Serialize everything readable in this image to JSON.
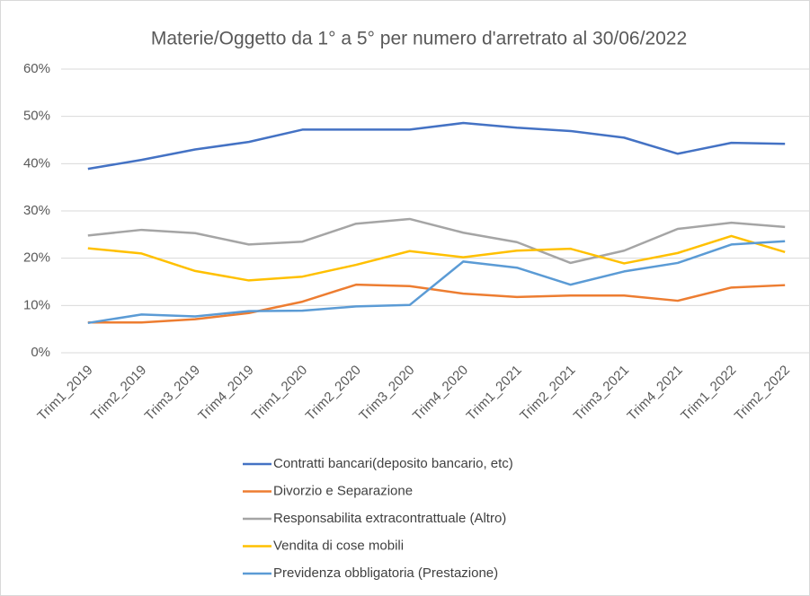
{
  "chart_data": {
    "type": "line",
    "title": "Materie/Oggetto da 1° a 5° per numero d'arretrato al 30/06/2022",
    "categories": [
      "Trim1_2019",
      "Trim2_2019",
      "Trim3_2019",
      "Trim4_2019",
      "Trim1_2020",
      "Trim2_2020",
      "Trim3_2020",
      "Trim4_2020",
      "Trim1_2021",
      "Trim2_2021",
      "Trim3_2021",
      "Trim4_2021",
      "Trim1_2022",
      "Trim2_2022"
    ],
    "series": [
      {
        "name": "Contratti bancari(deposito bancario, etc)",
        "color": "#4472c4",
        "values": [
          38.9,
          40.8,
          43.0,
          44.6,
          47.2,
          47.2,
          47.2,
          48.6,
          47.6,
          46.9,
          45.5,
          42.1,
          44.4,
          44.2
        ]
      },
      {
        "name": "Divorzio e Separazione",
        "color": "#ed7d31",
        "values": [
          6.4,
          6.4,
          7.1,
          8.4,
          10.8,
          14.4,
          14.1,
          12.5,
          11.8,
          12.1,
          12.1,
          11.0,
          13.8,
          14.3
        ]
      },
      {
        "name": "Responsabilita extracontrattuale (Altro)",
        "color": "#a5a5a5",
        "values": [
          24.8,
          26.0,
          25.3,
          22.9,
          23.5,
          27.3,
          28.3,
          25.4,
          23.4,
          19.0,
          21.6,
          26.2,
          27.5,
          26.6
        ]
      },
      {
        "name": "Vendita di cose mobili",
        "color": "#ffc000",
        "values": [
          22.1,
          21.0,
          17.3,
          15.3,
          16.1,
          18.6,
          21.5,
          20.2,
          21.6,
          22.0,
          18.9,
          21.1,
          24.7,
          21.3
        ]
      },
      {
        "name": "Previdenza obbligatoria (Prestazione)",
        "color": "#5b9bd5",
        "values": [
          6.3,
          8.1,
          7.7,
          8.8,
          8.9,
          9.8,
          10.1,
          19.3,
          18.0,
          14.4,
          17.2,
          19.0,
          22.9,
          23.6
        ]
      }
    ],
    "ylim": [
      0,
      60
    ],
    "yticks": [
      {
        "value": 0,
        "label": "0%"
      },
      {
        "value": 10,
        "label": "10%"
      },
      {
        "value": 20,
        "label": "20%"
      },
      {
        "value": 30,
        "label": "30%"
      },
      {
        "value": 40,
        "label": "40%"
      },
      {
        "value": 50,
        "label": "50%"
      },
      {
        "value": 60,
        "label": "60%"
      }
    ],
    "grid": true
  }
}
